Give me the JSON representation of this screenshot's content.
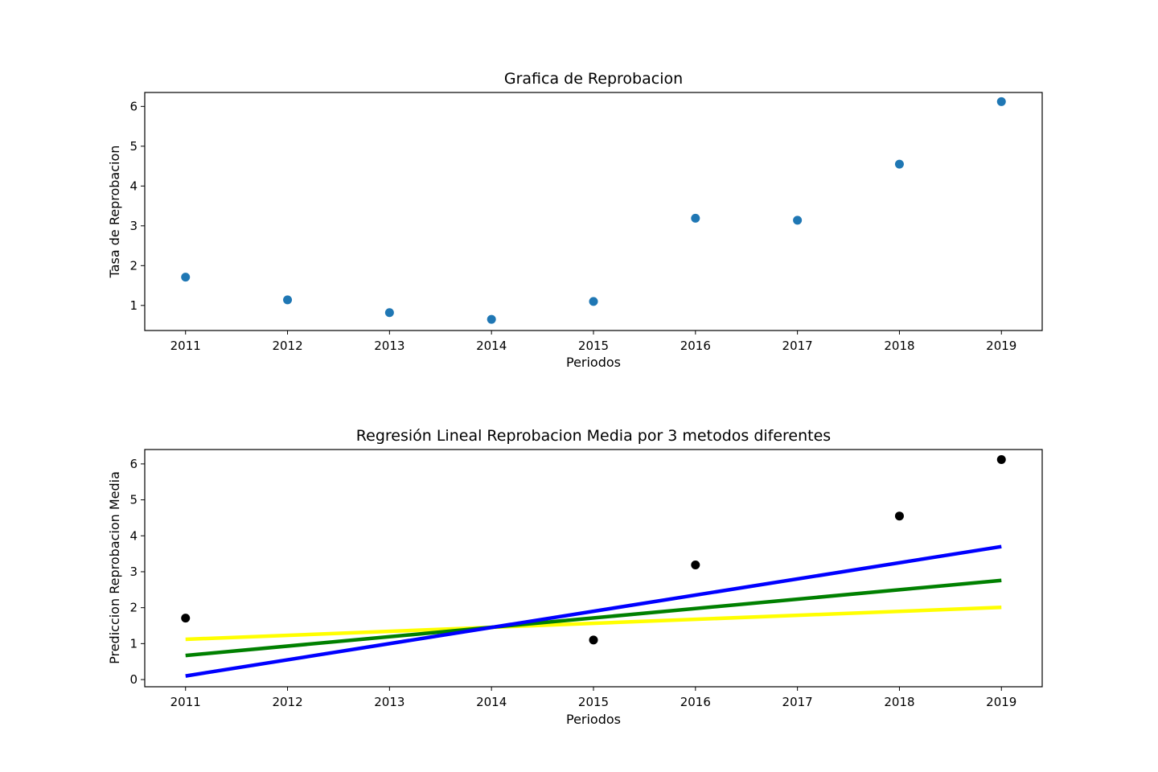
{
  "chart_data": [
    {
      "type": "scatter",
      "title": "Grafica de Reprobacion",
      "xlabel": "Periodos",
      "ylabel": "Tasa de Reprobacion",
      "xlim": [
        2010.6,
        2019.4
      ],
      "ylim": [
        0.37,
        6.35
      ],
      "xticks": [
        2011,
        2012,
        2013,
        2014,
        2015,
        2016,
        2017,
        2018,
        2019
      ],
      "yticks": [
        1,
        2,
        3,
        4,
        5,
        6
      ],
      "grid": false,
      "series": [
        {
          "color": "#1f77b4",
          "marker": "circle",
          "x": [
            2011,
            2012,
            2013,
            2014,
            2015,
            2016,
            2017,
            2018,
            2019
          ],
          "y": [
            1.71,
            1.14,
            0.82,
            0.65,
            1.1,
            3.19,
            3.14,
            4.55,
            6.12
          ]
        }
      ]
    },
    {
      "type": "scatter",
      "title": "Regresión Lineal Reprobacion Media por 3 metodos diferentes",
      "xlabel": "Periodos",
      "ylabel": "Prediccion Reprobacion Media",
      "xlim": [
        2010.6,
        2019.4
      ],
      "ylim": [
        -0.2,
        6.4
      ],
      "xticks": [
        2011,
        2012,
        2013,
        2014,
        2015,
        2016,
        2017,
        2018,
        2019
      ],
      "yticks": [
        0,
        1,
        2,
        3,
        4,
        5,
        6
      ],
      "grid": false,
      "series": [
        {
          "color": "#000000",
          "marker": "circle",
          "x": [
            2011,
            2015,
            2016,
            2018,
            2019
          ],
          "y": [
            1.71,
            1.1,
            3.19,
            4.55,
            6.12
          ]
        }
      ],
      "lines": [
        {
          "color": "#ffff00",
          "x": [
            2011,
            2019
          ],
          "y": [
            1.12,
            2.01
          ]
        },
        {
          "color": "#008000",
          "x": [
            2011,
            2019
          ],
          "y": [
            0.67,
            2.76
          ]
        },
        {
          "color": "#0000ff",
          "x": [
            2011,
            2019
          ],
          "y": [
            0.1,
            3.7
          ]
        }
      ]
    }
  ]
}
